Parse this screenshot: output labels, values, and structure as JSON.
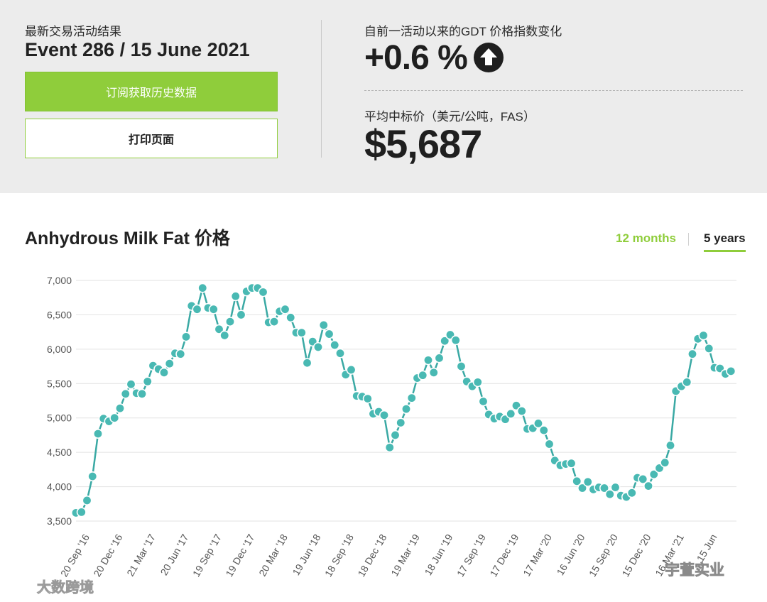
{
  "header": {
    "event_label": "最新交易活动结果",
    "event_title": "Event 286 / 15 June 2021",
    "subscribe_button": "订阅获取历史数据",
    "print_button": "打印页面",
    "gdt_label": "自前一活动以来的GDT 价格指数变化",
    "gdt_change": "+0.6 %",
    "gdt_direction_icon": "arrow-up-circle-icon",
    "price_label": "平均中标价（美元/公吨，FAS）",
    "price_value": "$5,687"
  },
  "colors": {
    "accent_green": "#8fcd3b",
    "series": "#3aa9a4",
    "marker_fill": "#49b9b3",
    "top_bg": "#ececec"
  },
  "tabs": [
    {
      "label": "12 months",
      "active": false
    },
    {
      "label": "5 years",
      "active": true
    }
  ],
  "chart_data": {
    "type": "line",
    "title": "Anhydrous Milk Fat 价格",
    "xlabel": "",
    "ylabel": "",
    "ylim": [
      3500,
      7000
    ],
    "yticks": [
      7000,
      6500,
      6000,
      5500,
      5000,
      4500,
      4000,
      3500
    ],
    "ytick_labels": [
      "7,000",
      "6,500",
      "6,000",
      "5,500",
      "5,000",
      "4,500",
      "4,000",
      "3,500"
    ],
    "xtick_labels": [
      "20 Sep '16",
      "20 Dec '16",
      "21 Mar '17",
      "20 Jun '17",
      "19 Sep '17",
      "19 Dec '17",
      "20 Mar '18",
      "19 Jun '18",
      "18 Sep '18",
      "18 Dec '18",
      "19 Mar '19",
      "18 Jun '19",
      "17 Sep '19",
      "17 Dec '19",
      "17 Mar '20",
      "16 Jun '20",
      "15 Sep '20",
      "15 Dec '20",
      "16 Mar '21",
      "15 Jun"
    ],
    "xtick_positions": [
      2.5,
      8.5,
      14.5,
      20.5,
      26.5,
      32.5,
      38.5,
      44.5,
      50.5,
      56.5,
      62.5,
      68.5,
      74.5,
      80.5,
      86.5,
      92.5,
      98.5,
      104.5,
      110.5,
      116.5
    ],
    "grid": true,
    "legend": "none",
    "values": [
      3620,
      3630,
      3800,
      4150,
      4770,
      4990,
      4950,
      5000,
      5140,
      5350,
      5490,
      5360,
      5350,
      5530,
      5760,
      5710,
      5660,
      5790,
      5940,
      5930,
      6180,
      6630,
      6580,
      6890,
      6600,
      6580,
      6290,
      6200,
      6400,
      6770,
      6500,
      6840,
      6890,
      6890,
      6830,
      6390,
      6400,
      6550,
      6580,
      6460,
      6240,
      6240,
      5800,
      6110,
      6030,
      6350,
      6220,
      6060,
      5940,
      5630,
      5700,
      5320,
      5310,
      5280,
      5060,
      5090,
      5040,
      4570,
      4750,
      4930,
      5130,
      5290,
      5580,
      5620,
      5840,
      5660,
      5870,
      6120,
      6210,
      6130,
      5750,
      5530,
      5460,
      5520,
      5240,
      5050,
      4990,
      5020,
      4980,
      5060,
      5180,
      5100,
      4840,
      4850,
      4920,
      4820,
      4620,
      4380,
      4310,
      4330,
      4340,
      4080,
      3980,
      4070,
      3960,
      3990,
      3980,
      3890,
      3990,
      3870,
      3850,
      3910,
      4130,
      4110,
      4010,
      4180,
      4270,
      4350,
      4600,
      5390,
      5460,
      5520,
      5930,
      6150,
      6200,
      6010,
      5730,
      5720,
      5640,
      5680
    ]
  },
  "watermarks": {
    "left": "大数跨境",
    "right": "宇萱实业"
  }
}
